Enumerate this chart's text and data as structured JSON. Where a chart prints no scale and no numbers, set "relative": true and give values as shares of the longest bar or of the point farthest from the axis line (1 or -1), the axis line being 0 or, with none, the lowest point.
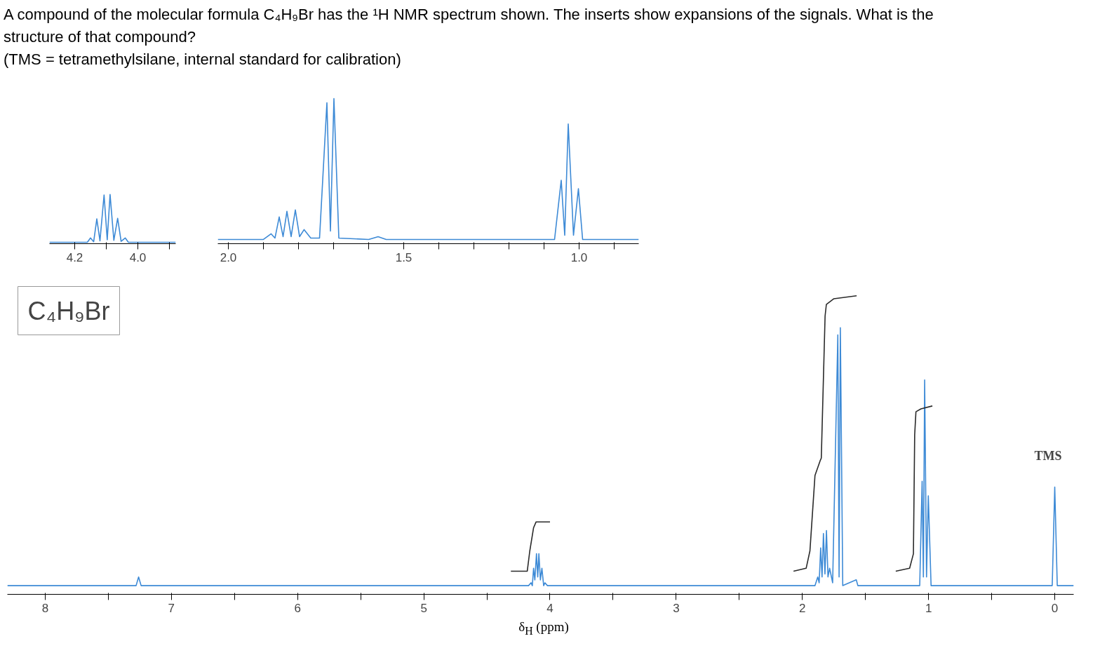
{
  "chart_data": [
    {
      "type": "line",
      "title": "A compound of the molecular formula C₄H₉Br has the ¹H NMR spectrum shown. The inserts show expansions of the signals. What is the structure of that compound?",
      "subtitle": "(TMS = tetramethylsilane, internal standard for calibration)",
      "relative": true,
      "xlim": [
        4.28,
        3.88
      ],
      "xticks": [
        4.2,
        {
          "value": 4.1,
          "label": null
        },
        {
          "value": 4,
          "label": "4.0"
        },
        {
          "value": 3.9,
          "label": null
        }
      ],
      "grid": false,
      "marker": "none",
      "line_style": "solid",
      "series": [
        {
          "color": "#3d8ad6",
          "x": [
            4.28,
            4.16,
            4.15,
            4.14,
            4.13,
            4.12,
            4.107,
            4.097,
            4.088,
            4.076,
            4.064,
            4.053,
            4.04,
            4.03,
            3.88
          ],
          "values": [
            0,
            0,
            0.09,
            0.01,
            0.49,
            0.03,
            0.99,
            0.05,
            1,
            0.04,
            0.5,
            0.02,
            0.09,
            0,
            0
          ]
        }
      ]
    },
    {
      "type": "line",
      "relative": true,
      "xlim": [
        2.03,
        0.83
      ],
      "xticks": [
        {
          "value": 2,
          "label": "2.0"
        },
        {
          "value": 1.9,
          "label": null
        },
        {
          "value": 1.8,
          "label": null
        },
        {
          "value": 1.7,
          "label": null
        },
        {
          "value": 1.6,
          "label": null
        },
        1.5,
        {
          "value": 1.4,
          "label": null
        },
        {
          "value": 1.3,
          "label": null
        },
        {
          "value": 1.2,
          "label": null
        },
        {
          "value": 1.1,
          "label": null
        },
        {
          "value": 1,
          "label": "1.0"
        },
        {
          "value": 0.9,
          "label": null
        }
      ],
      "grid": false,
      "marker": "none",
      "line_style": "solid",
      "series": [
        {
          "color": "#3d8ad6",
          "x": [
            2.03,
            1.9,
            1.878,
            1.867,
            1.855,
            1.844,
            1.833,
            1.821,
            1.809,
            1.797,
            1.784,
            1.765,
            1.74,
            1.719,
            1.709,
            1.699,
            1.685,
            1.6,
            1.573,
            1.55,
            1.07,
            1.051,
            1.041,
            1.031,
            1.016,
            1.002,
            0.99,
            0.83
          ],
          "values": [
            0,
            0,
            0.04,
            0.01,
            0.16,
            0.02,
            0.2,
            0.02,
            0.21,
            0.02,
            0.07,
            0.01,
            0.01,
            0.97,
            0.06,
            1,
            0.01,
            0,
            0.02,
            0,
            0,
            0.42,
            0.03,
            0.82,
            0.03,
            0.36,
            0,
            0
          ]
        }
      ]
    },
    {
      "type": "line",
      "xlabel": "δ$_{H}$ (ppm)",
      "relative": true,
      "xlim": [
        8.3,
        -0.15
      ],
      "xticks": [
        8,
        {
          "value": 7.5,
          "label": null
        },
        7,
        {
          "value": 6.5,
          "label": null
        },
        6,
        {
          "value": 5.5,
          "label": null
        },
        5,
        {
          "value": 4.5,
          "label": null
        },
        4,
        {
          "value": 3.5,
          "label": null
        },
        3,
        {
          "value": 2.5,
          "label": null
        },
        2,
        {
          "value": 1.5,
          "label": null
        },
        1,
        {
          "value": 0.5,
          "label": null
        },
        0
      ],
      "grid": false,
      "marker": "none",
      "line_style": "solid",
      "annotations": [
        "C₄H₉Br",
        {
          "text": "TMS",
          "x": 0,
          "y": 0.34
        }
      ],
      "series": [
        {
          "color": "#3d8ad6",
          "x": [
            8.3,
            7.28,
            7.26,
            7.24,
            4.17,
            4.15,
            4.14,
            4.13,
            4.12,
            4.107,
            4.097,
            4.088,
            4.076,
            4.064,
            4.05,
            4.04,
            4.02,
            1.9,
            1.878,
            1.867,
            1.855,
            1.844,
            1.833,
            1.821,
            1.809,
            1.797,
            1.784,
            1.76,
            1.719,
            1.709,
            1.699,
            1.68,
            1.573,
            1.56,
            1.07,
            1.051,
            1.041,
            1.031,
            1.016,
            1.002,
            0.98,
            0.02,
            0,
            -0.02,
            -0.15
          ],
          "values": [
            0,
            0,
            0.03,
            0,
            0,
            0.01,
            0,
            0.06,
            0.02,
            0.11,
            0.03,
            0.11,
            0.02,
            0.06,
            0,
            0.01,
            0,
            0,
            0.03,
            0.01,
            0.13,
            0.03,
            0.18,
            0.04,
            0.19,
            0.03,
            0.06,
            0.01,
            0.865,
            0.03,
            0.89,
            0,
            0.02,
            0,
            0,
            0.36,
            0.03,
            0.71,
            0.03,
            0.31,
            0,
            0,
            0.34,
            0,
            0
          ]
        },
        {
          "color": "#2a2a2a",
          "x": [
            4.31,
            4.18,
            4.16,
            4.13,
            4.11,
            4.0
          ],
          "values": [
            0.05,
            0.05,
            0.12,
            0.2,
            0.22,
            0.22
          ]
        },
        {
          "color": "#2a2a2a",
          "x": [
            2.07,
            1.97,
            1.94,
            1.9,
            1.86,
            1.85,
            1.82,
            1.81,
            1.75,
            1.57
          ],
          "values": [
            0.05,
            0.06,
            0.12,
            0.38,
            0.43,
            0.44,
            0.93,
            0.97,
            0.99,
            1.0
          ]
        },
        {
          "color": "#2a2a2a",
          "x": [
            1.26,
            1.15,
            1.12,
            1.11,
            1.1,
            1.06,
            0.97
          ],
          "values": [
            0.05,
            0.06,
            0.11,
            0.52,
            0.6,
            0.61,
            0.62
          ]
        }
      ]
    }
  ]
}
